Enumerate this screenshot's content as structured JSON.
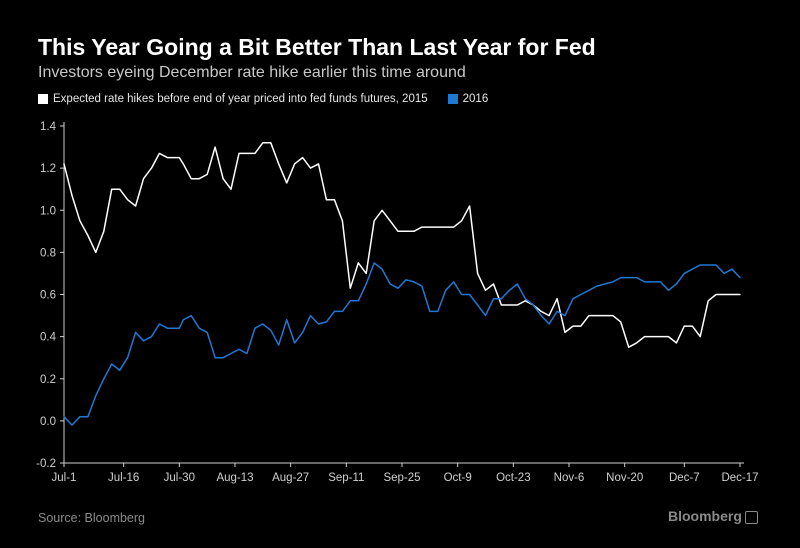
{
  "header": {
    "title": "This Year Going a Bit Better Than Last Year for Fed",
    "subtitle": "Investors eyeing December rate hike earlier this time around"
  },
  "footer": {
    "source": "Source: Bloomberg",
    "brand": "Bloomberg"
  },
  "chart_data": {
    "type": "line",
    "title": "This Year Going a Bit Better Than Last Year for Fed",
    "subtitle": "Investors eyeing December rate hike earlier this time around",
    "xlabel": "",
    "ylabel": "",
    "ylim": [
      -0.2,
      1.4
    ],
    "yticks": [
      -0.2,
      0.0,
      0.2,
      0.4,
      0.6,
      0.8,
      1.0,
      1.2,
      1.4
    ],
    "ytick_labels": [
      "-0.2",
      "0.0",
      "0.2",
      "0.4",
      "0.6",
      "0.8",
      "1.0",
      "1.2",
      "1.4"
    ],
    "xlim": [
      0,
      170
    ],
    "xticks": [
      0,
      15,
      29,
      43,
      57,
      71,
      85,
      99,
      113,
      127,
      141,
      156,
      170
    ],
    "xtick_labels": [
      "Jul-1",
      "Jul-16",
      "Jul-30",
      "Aug-13",
      "Aug-27",
      "Sep-11",
      "Sep-25",
      "Oct-9",
      "Oct-23",
      "Nov-6",
      "Nov-20",
      "Dec-7",
      "Dec-17"
    ],
    "x_unit": "days since Jul-1",
    "grid": false,
    "legend_position": "top-left",
    "series": [
      {
        "name": "Expected rate hikes before end of year priced into fed funds futures, 2015",
        "color": "#ffffff",
        "x": [
          0,
          2,
          4,
          6,
          8,
          10,
          12,
          14,
          16,
          18,
          20,
          22,
          24,
          26,
          28,
          29,
          30,
          32,
          34,
          36,
          38,
          40,
          42,
          44,
          46,
          48,
          50,
          52,
          54,
          56,
          58,
          60,
          62,
          64,
          66,
          68,
          70,
          72,
          74,
          76,
          78,
          80,
          82,
          84,
          86,
          88,
          90,
          92,
          94,
          96,
          98,
          100,
          102,
          104,
          106,
          108,
          110,
          112,
          114,
          116,
          118,
          120,
          122,
          124,
          126,
          128,
          130,
          132,
          134,
          136,
          138,
          140,
          142,
          144,
          146,
          148,
          150,
          152,
          154,
          156,
          158,
          160,
          162,
          164,
          166,
          168,
          170
        ],
        "values": [
          1.22,
          1.07,
          0.95,
          0.88,
          0.8,
          0.9,
          1.1,
          1.1,
          1.05,
          1.02,
          1.15,
          1.2,
          1.27,
          1.25,
          1.25,
          1.25,
          1.22,
          1.15,
          1.15,
          1.17,
          1.3,
          1.15,
          1.1,
          1.27,
          1.27,
          1.27,
          1.32,
          1.32,
          1.22,
          1.13,
          1.22,
          1.25,
          1.2,
          1.22,
          1.05,
          1.05,
          0.95,
          0.63,
          0.75,
          0.7,
          0.95,
          1.0,
          0.95,
          0.9,
          0.9,
          0.9,
          0.92,
          0.92,
          0.92,
          0.92,
          0.92,
          0.95,
          1.02,
          0.7,
          0.62,
          0.65,
          0.55,
          0.55,
          0.55,
          0.57,
          0.55,
          0.52,
          0.5,
          0.58,
          0.42,
          0.45,
          0.45,
          0.5,
          0.5,
          0.5,
          0.5,
          0.47,
          0.35,
          0.37,
          0.4,
          0.4,
          0.4,
          0.4,
          0.37,
          0.45,
          0.45,
          0.4,
          0.57,
          0.6,
          0.6,
          0.6,
          0.6
        ]
      },
      {
        "name": "2016",
        "color": "#1f78d1",
        "x": [
          0,
          2,
          4,
          6,
          8,
          10,
          12,
          14,
          16,
          18,
          20,
          22,
          24,
          26,
          28,
          29,
          30,
          32,
          34,
          36,
          38,
          40,
          42,
          44,
          46,
          48,
          50,
          52,
          54,
          56,
          58,
          60,
          62,
          64,
          66,
          68,
          70,
          72,
          74,
          76,
          78,
          80,
          82,
          84,
          86,
          88,
          90,
          92,
          94,
          96,
          98,
          100,
          102,
          104,
          106,
          108,
          110,
          112,
          114,
          116,
          118,
          120,
          122,
          124,
          126,
          128,
          130,
          132,
          134,
          136,
          138,
          140,
          142,
          144,
          146,
          148,
          150,
          152,
          154,
          156,
          158,
          160,
          162,
          164,
          166,
          168,
          170
        ],
        "values": [
          0.02,
          -0.02,
          0.02,
          0.02,
          0.12,
          0.2,
          0.27,
          0.24,
          0.3,
          0.42,
          0.38,
          0.4,
          0.46,
          0.44,
          0.44,
          0.44,
          0.48,
          0.5,
          0.44,
          0.42,
          0.3,
          0.3,
          0.32,
          0.34,
          0.32,
          0.44,
          0.46,
          0.43,
          0.36,
          0.48,
          0.37,
          0.42,
          0.5,
          0.46,
          0.47,
          0.52,
          0.52,
          0.57,
          0.57,
          0.65,
          0.75,
          0.72,
          0.65,
          0.63,
          0.67,
          0.66,
          0.64,
          0.52,
          0.52,
          0.62,
          0.66,
          0.6,
          0.6,
          0.55,
          0.5,
          0.58,
          0.58,
          0.62,
          0.65,
          0.58,
          0.55,
          0.5,
          0.46,
          0.52,
          0.5,
          0.58,
          0.6,
          0.62,
          0.64,
          0.65,
          0.66,
          0.68,
          0.68,
          0.68,
          0.66,
          0.66,
          0.66,
          0.62,
          0.65,
          0.7,
          0.72,
          0.74,
          0.74,
          0.74,
          0.7,
          0.72,
          0.68
        ]
      }
    ]
  }
}
